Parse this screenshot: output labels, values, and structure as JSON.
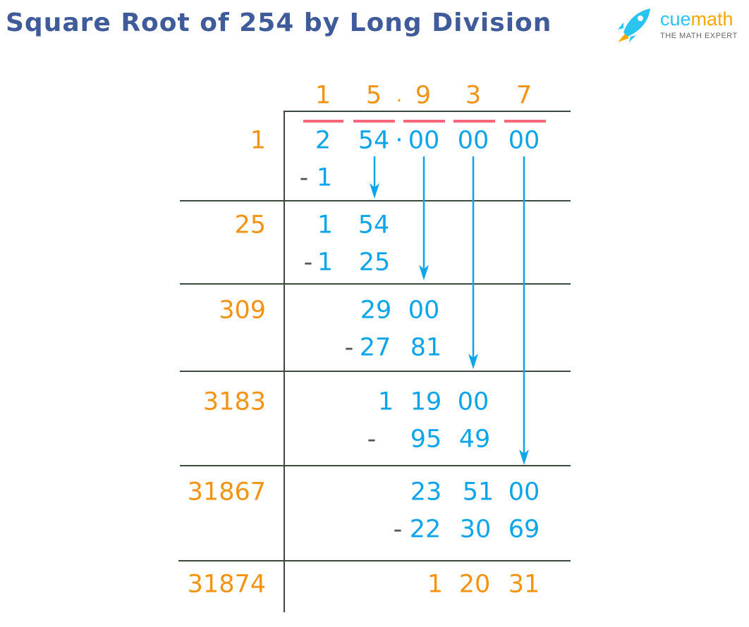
{
  "title": "Square Root of 254 by Long Division",
  "logo": {
    "brand_part1": "cue",
    "brand_part2": "math",
    "tagline": "THE MATH EXPERT"
  },
  "colors": {
    "quotient_divisor": "#F39314",
    "working": "#0DA5E9",
    "title": "#3F5B9A",
    "pair_bar": "#F7687C",
    "grid": "#3B4A3B"
  },
  "quotient": [
    "1",
    "5",
    ".",
    "9",
    "3",
    "7"
  ],
  "dividend": [
    "2",
    "54",
    "·",
    "00",
    "00",
    "00"
  ],
  "divisors": [
    "1",
    "25",
    "309",
    "3183",
    "31867",
    "31874"
  ],
  "steps": [
    {
      "minus": "-",
      "sub": [
        "1"
      ]
    },
    {
      "rem": [
        "1",
        "54"
      ],
      "minus": "-",
      "sub": [
        "1",
        "25"
      ]
    },
    {
      "rem": [
        "29",
        "00"
      ],
      "minus": "-",
      "sub": [
        "27",
        "81"
      ]
    },
    {
      "rem": [
        "1",
        "19",
        "00"
      ],
      "minus": "-",
      "sub": [
        "95",
        "49"
      ]
    },
    {
      "rem": [
        "23",
        "51",
        "00"
      ],
      "minus": "-",
      "sub": [
        "22",
        "30",
        "69"
      ]
    },
    {
      "rem": [
        "1",
        "20",
        "31"
      ]
    }
  ]
}
